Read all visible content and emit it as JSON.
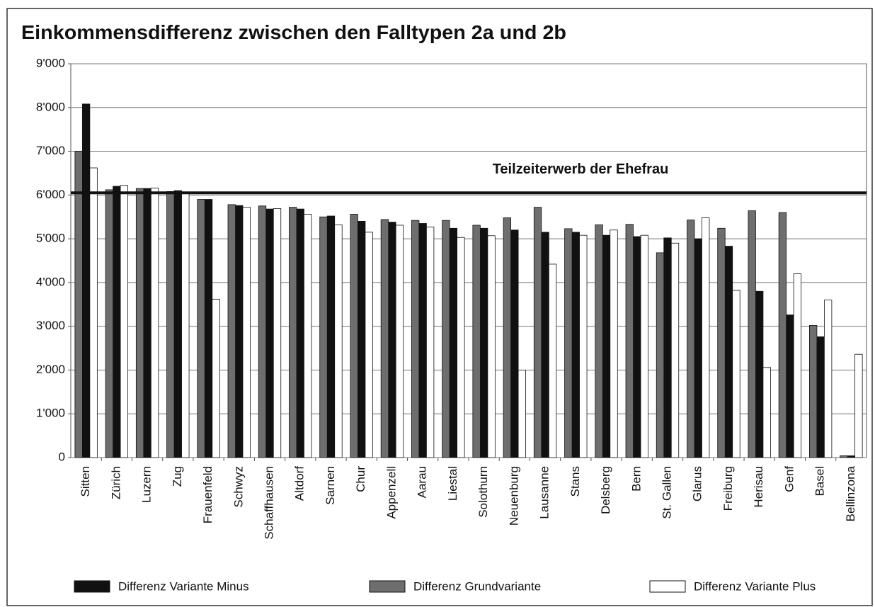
{
  "chart_data": {
    "type": "bar",
    "title": "Einkommensdifferenz zwischen den Falltypen 2a und 2b",
    "categories": [
      "Sitten",
      "Zürich",
      "Luzern",
      "Zug",
      "Frauenfeld",
      "Schwyz",
      "Schaffhausen",
      "Altdorf",
      "Sarnen",
      "Chur",
      "Appenzell",
      "Aarau",
      "Liestal",
      "Solothurn",
      "Neuenburg",
      "Lausanne",
      "Stans",
      "Delsberg",
      "Bern",
      "St. Gallen",
      "Glarus",
      "Freiburg",
      "Herisau",
      "Genf",
      "Basel",
      "Bellinzona"
    ],
    "series": [
      {
        "name": "Differenz Variante Minus",
        "color": "#111111",
        "values": [
          8080,
          6200,
          6150,
          6100,
          5900,
          5760,
          5680,
          5680,
          5520,
          5400,
          5380,
          5350,
          5240,
          5240,
          5200,
          5150,
          5150,
          5080,
          5050,
          5020,
          5000,
          4830,
          3800,
          3260,
          2760,
          40
        ]
      },
      {
        "name": "Differenz Grundvariante",
        "color": "#6e6e6e",
        "values": [
          7000,
          6120,
          6150,
          6080,
          5900,
          5780,
          5750,
          5720,
          5500,
          5560,
          5440,
          5420,
          5420,
          5310,
          5480,
          5720,
          5230,
          5320,
          5330,
          4680,
          5430,
          5240,
          5640,
          5600,
          3020,
          40
        ]
      },
      {
        "name": "Differenz Variante Plus",
        "color": "#ffffff",
        "values": [
          6620,
          6220,
          6160,
          6050,
          3620,
          5720,
          5690,
          5560,
          5320,
          5150,
          5310,
          5270,
          5030,
          5070,
          2000,
          4420,
          5080,
          5200,
          5080,
          4900,
          5480,
          3820,
          2060,
          4200,
          3600,
          2360
        ]
      }
    ],
    "reference_line": {
      "label": "Teilzeiterwerb der Ehefrau",
      "value": 6050
    },
    "ylim": [
      0,
      9000
    ],
    "yticks": [
      0,
      {
        "value": 1000,
        "label": "1'000"
      },
      {
        "value": 2000,
        "label": "2'000"
      },
      {
        "value": 3000,
        "label": "3'000"
      },
      {
        "value": 4000,
        "label": "4'000"
      },
      {
        "value": 5000,
        "label": "5'000"
      },
      {
        "value": 6000,
        "label": "6'000"
      },
      {
        "value": 7000,
        "label": "7'000"
      },
      {
        "value": 8000,
        "label": "8'000"
      },
      {
        "value": 9000,
        "label": "9'000"
      }
    ],
    "grid": true,
    "legend": "bottom"
  }
}
